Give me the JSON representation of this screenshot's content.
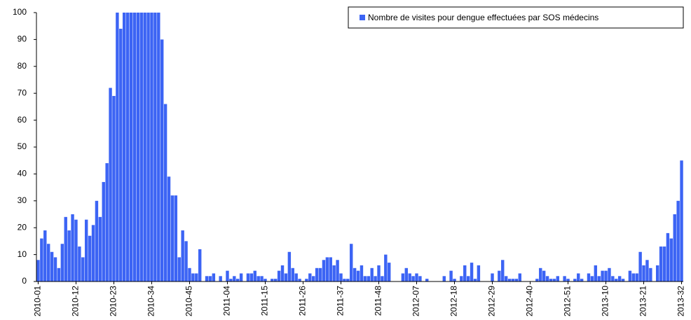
{
  "chart_data": {
    "type": "bar",
    "series": [
      {
        "name": "Nombre de visites pour dengue effectuées par SOS médecins",
        "color": "#3c64f4",
        "values": [
          8,
          16,
          19,
          14,
          11,
          9,
          5,
          14,
          24,
          19,
          25,
          23,
          13,
          9,
          23,
          17,
          21,
          30,
          24,
          37,
          44,
          72,
          69,
          100,
          94,
          100,
          100,
          100,
          100,
          100,
          100,
          100,
          100,
          100,
          100,
          100,
          90,
          66,
          39,
          32,
          32,
          9,
          19,
          15,
          5,
          3,
          3,
          12,
          0,
          2,
          2,
          3,
          0,
          2,
          0,
          4,
          1,
          2,
          1,
          3,
          0,
          3,
          3,
          4,
          2,
          2,
          1,
          0,
          1,
          1,
          4,
          6,
          3,
          11,
          5,
          3,
          1,
          0,
          1,
          3,
          2,
          5,
          5,
          8,
          9,
          9,
          6,
          8,
          3,
          1,
          1,
          14,
          5,
          4,
          6,
          2,
          2,
          5,
          2,
          6,
          2,
          10,
          7,
          0,
          0,
          0,
          3,
          5,
          3,
          2,
          3,
          2,
          0,
          1,
          0,
          0,
          0,
          0,
          2,
          0,
          4,
          1,
          0,
          2,
          6,
          2,
          7,
          1,
          6,
          0,
          0,
          0,
          3,
          0,
          4,
          8,
          2,
          1,
          1,
          1,
          3,
          0,
          0,
          0,
          0,
          1,
          5,
          4,
          2,
          1,
          1,
          2,
          0,
          2,
          1,
          0,
          1,
          3,
          1,
          0,
          3,
          2,
          6,
          2,
          4,
          4,
          5,
          2,
          1,
          2,
          1,
          0,
          4,
          3,
          3,
          11,
          6,
          8,
          5,
          0,
          6,
          13,
          13,
          18,
          16,
          25,
          30,
          45
        ]
      }
    ],
    "categories": [
      "2010-01",
      null,
      null,
      null,
      null,
      null,
      null,
      null,
      null,
      null,
      null,
      "2010-12",
      null,
      null,
      null,
      null,
      null,
      null,
      null,
      null,
      null,
      null,
      "2010-23",
      null,
      null,
      null,
      null,
      null,
      null,
      null,
      null,
      null,
      null,
      "2010-34",
      null,
      null,
      null,
      null,
      null,
      null,
      null,
      null,
      null,
      null,
      "2010-45",
      null,
      null,
      null,
      null,
      null,
      null,
      null,
      null,
      null,
      null,
      "2011-04",
      null,
      null,
      null,
      null,
      null,
      null,
      null,
      null,
      null,
      null,
      "2011-15",
      null,
      null,
      null,
      null,
      null,
      null,
      null,
      null,
      null,
      null,
      "2011-26",
      null,
      null,
      null,
      null,
      null,
      null,
      null,
      null,
      null,
      null,
      "2011-37",
      null,
      null,
      null,
      null,
      null,
      null,
      null,
      null,
      null,
      null,
      "2011-48",
      null,
      null,
      null,
      null,
      null,
      null,
      null,
      null,
      null,
      null,
      "2012-07",
      null,
      null,
      null,
      null,
      null,
      null,
      null,
      null,
      null,
      null,
      "2012-18",
      null,
      null,
      null,
      null,
      null,
      null,
      null,
      null,
      null,
      null,
      "2012-29",
      null,
      null,
      null,
      null,
      null,
      null,
      null,
      null,
      null,
      null,
      "2012-40",
      null,
      null,
      null,
      null,
      null,
      null,
      null,
      null,
      null,
      null,
      "2012-51",
      null,
      null,
      null,
      null,
      null,
      null,
      null,
      null,
      null,
      null,
      "2013-10",
      null,
      null,
      null,
      null,
      null,
      null,
      null,
      null,
      null,
      null,
      "2013-21",
      null,
      null,
      null,
      null,
      null,
      null,
      null,
      null,
      null,
      null,
      "2013-32"
    ],
    "ylim": [
      0,
      100
    ],
    "yticks": [
      0,
      10,
      20,
      30,
      40,
      50,
      60,
      70,
      80,
      90,
      100
    ],
    "legend": "upper right"
  }
}
